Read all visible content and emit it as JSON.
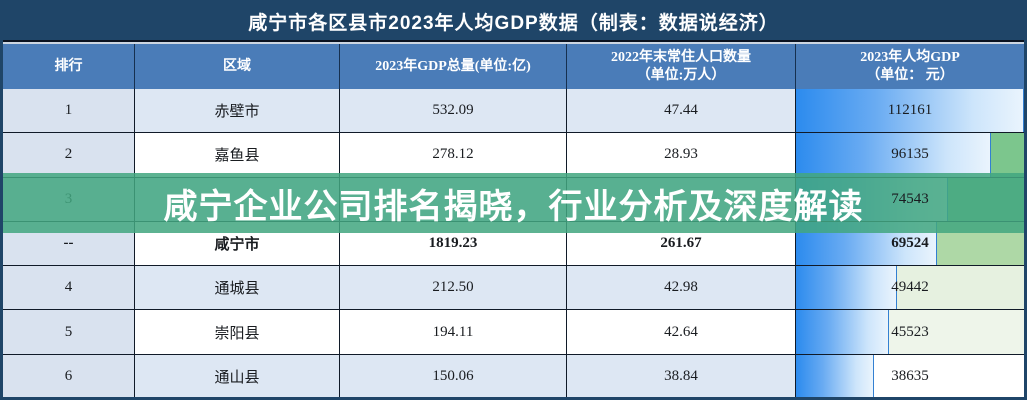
{
  "title": "咸宁市各区县市2023年人均GDP数据（制表：数据说经济）",
  "overlay": {
    "text": "咸宁企业公司排名揭晓，行业分析及深度解读",
    "bg_color": "#42a680"
  },
  "table": {
    "columns": [
      {
        "lines": [
          "排行",
          ""
        ]
      },
      {
        "lines": [
          "区域",
          ""
        ]
      },
      {
        "lines": [
          "2023年GDP总量(单位:亿)",
          ""
        ]
      },
      {
        "lines": [
          "2022年末常住人口数量",
          "（单位:万人）"
        ]
      },
      {
        "lines": [
          "2023年人均GDP",
          "（单位： 元）"
        ]
      }
    ],
    "per_capita_max": 112161,
    "rows": [
      {
        "rank": "1",
        "region": "赤壁市",
        "gdp": "532.09",
        "population": "47.44",
        "per_capita": "112161",
        "per_capita_value": 112161,
        "rest_color": "#ffffff",
        "bold": false
      },
      {
        "rank": "2",
        "region": "嘉鱼县",
        "gdp": "278.12",
        "population": "28.93",
        "per_capita": "96135",
        "per_capita_value": 96135,
        "rest_color": "#7cc68d",
        "bold": false
      },
      {
        "rank": "3",
        "region": "",
        "gdp": "",
        "population": "",
        "per_capita": "74543",
        "per_capita_value": 74543,
        "rest_color": "#8bcc96",
        "bold": false
      },
      {
        "rank": "--",
        "region": "咸宁市",
        "gdp": "1819.23",
        "population": "261.67",
        "per_capita": "69524",
        "per_capita_value": 69524,
        "rest_color": "#aed8a6",
        "bold": true
      },
      {
        "rank": "4",
        "region": "通城县",
        "gdp": "212.50",
        "population": "42.98",
        "per_capita": "49442",
        "per_capita_value": 49442,
        "rest_color": "#e6f1e0",
        "bold": false
      },
      {
        "rank": "5",
        "region": "崇阳县",
        "gdp": "194.11",
        "population": "42.64",
        "per_capita": "45523",
        "per_capita_value": 45523,
        "rest_color": "#eef5ea",
        "bold": false
      },
      {
        "rank": "6",
        "region": "通山县",
        "gdp": "150.06",
        "population": "38.84",
        "per_capita": "38635",
        "per_capita_value": 38635,
        "rest_color": "#ffffff",
        "bold": false
      }
    ]
  },
  "colors": {
    "title_bg": "#1f4568",
    "header_bg": "#4a7cb8",
    "rank_column_bg": "#d9e2ef",
    "row_alt_bg": "#dde7f3",
    "row_bg": "#ffffff",
    "border": "#101a28",
    "bar_gradient_start": "#2c8bee",
    "bar_gradient_end": "#eaf4fd",
    "overlay_green": "#42a680"
  }
}
